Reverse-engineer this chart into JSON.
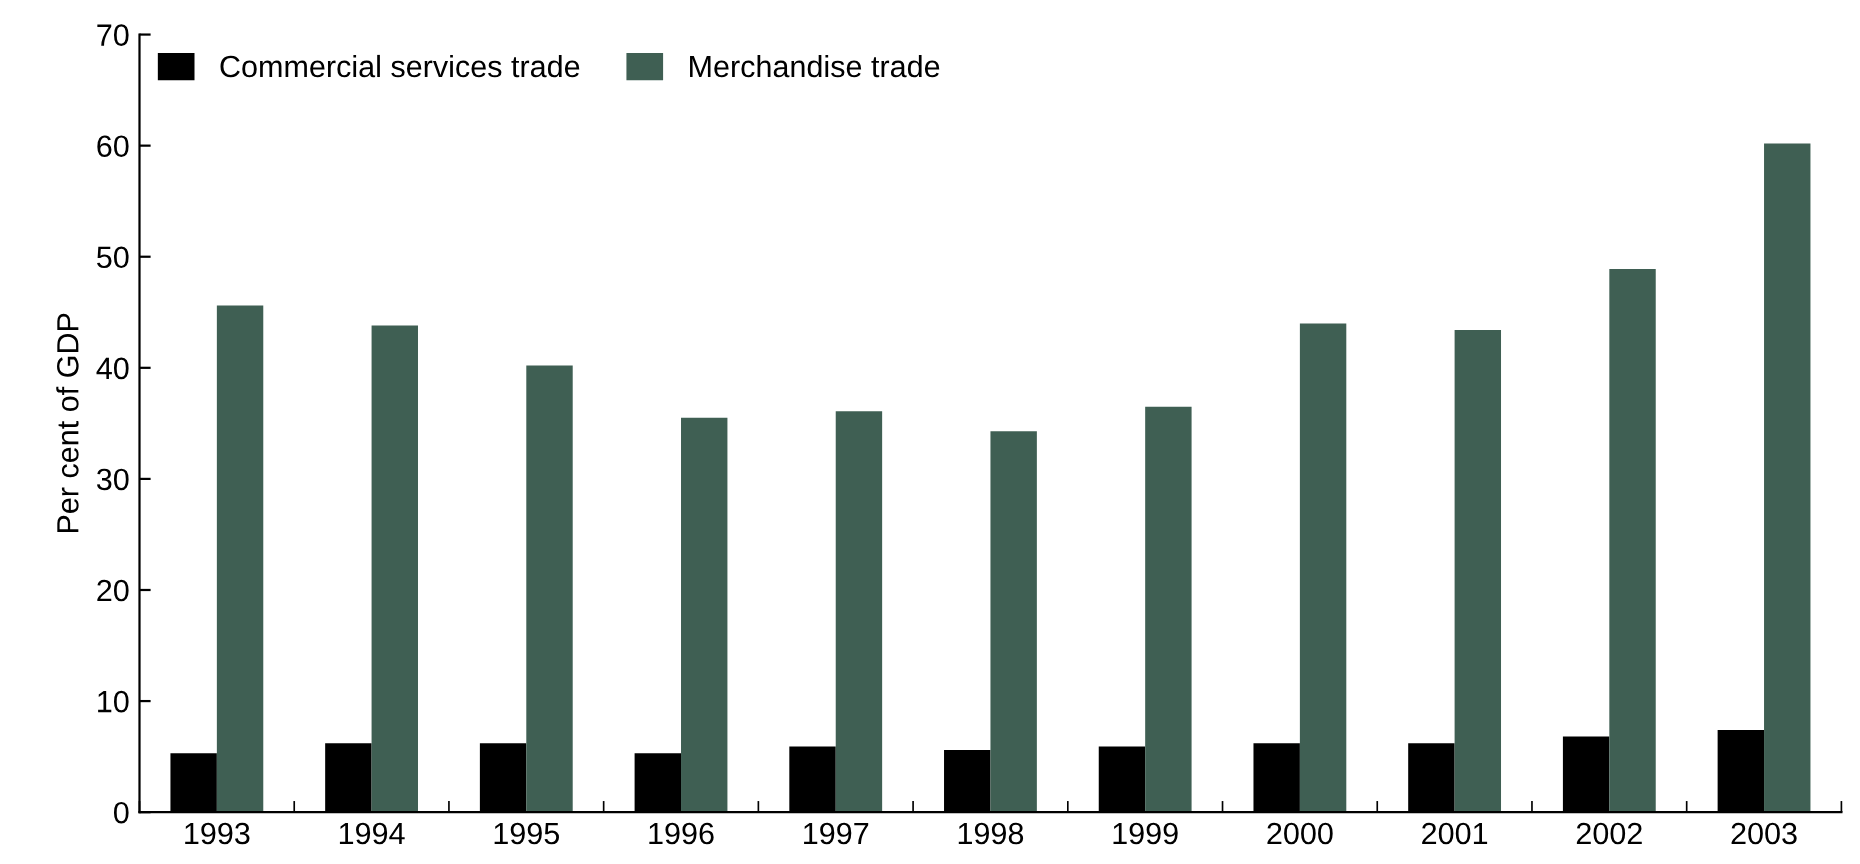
{
  "chart_data": {
    "type": "bar",
    "ylabel": "Per cent of GDP",
    "categories": [
      "1993",
      "1994",
      "1995",
      "1996",
      "1997",
      "1998",
      "1999",
      "2000",
      "2001",
      "2002",
      "2003"
    ],
    "series": [
      {
        "name": "Commercial services trade",
        "color": "#000000",
        "values": [
          5.3,
          6.2,
          6.2,
          5.3,
          5.9,
          5.6,
          5.9,
          6.2,
          6.2,
          6.8,
          7.4
        ]
      },
      {
        "name": "Merchandise trade",
        "color": "#3f5f53",
        "values": [
          45.6,
          43.8,
          40.2,
          35.5,
          36.1,
          34.3,
          36.5,
          44.0,
          43.4,
          48.9,
          60.2
        ]
      }
    ],
    "ylim": [
      0,
      70
    ],
    "yticks": [
      0,
      10,
      20,
      30,
      40,
      50,
      60,
      70
    ],
    "grid": false,
    "legend": "top left"
  }
}
